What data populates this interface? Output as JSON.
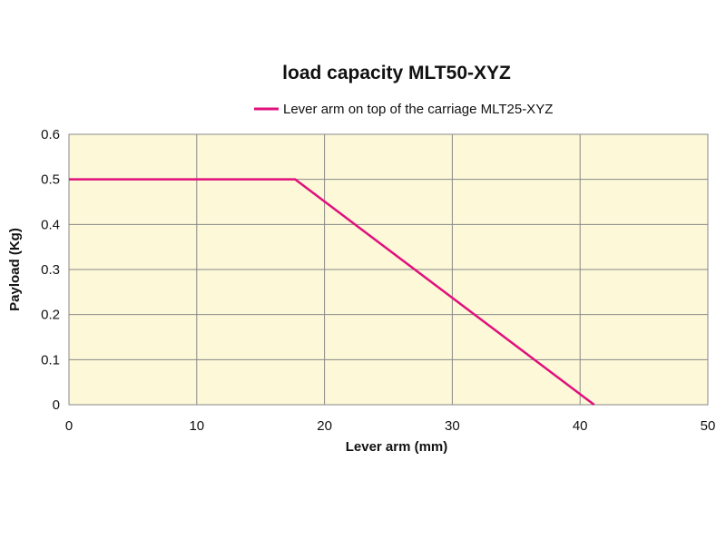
{
  "chart_data": {
    "type": "line",
    "title": "load capacity MLT50-XYZ",
    "xlabel": "Lever arm (mm)",
    "ylabel": "Payload (Kg)",
    "xlim": [
      0,
      50
    ],
    "ylim": [
      0,
      0.6
    ],
    "x_ticks": [
      "0",
      "10",
      "20",
      "30",
      "40",
      "50"
    ],
    "y_ticks": [
      "0",
      "0.1",
      "0.2",
      "0.3",
      "0.4",
      "0.5",
      "0.6"
    ],
    "grid": true,
    "legend_position": "top-center",
    "series": [
      {
        "name": "Lever arm on top of the carriage MLT25-XYZ",
        "color": "#e0107c",
        "points": [
          {
            "x": 0,
            "y": 0.5
          },
          {
            "x": 17.7,
            "y": 0.5
          },
          {
            "x": 41.1,
            "y": 0
          }
        ]
      }
    ],
    "colors": {
      "plot_background": "#fdf8d8",
      "grid": "#888888",
      "frame": "#888888"
    }
  }
}
